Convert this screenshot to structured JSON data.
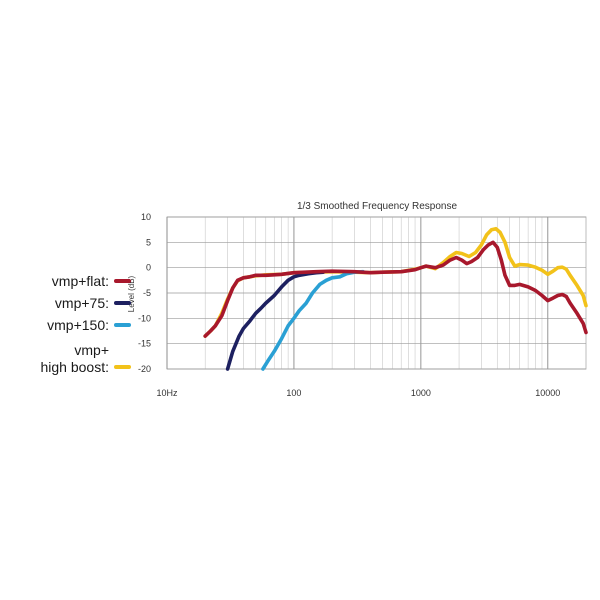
{
  "chart_data": {
    "type": "line",
    "title": "1/3 Smoothed Frequency Response",
    "xlabel": "",
    "ylabel": "Level (dB)",
    "xscale": "log",
    "xlim": [
      10,
      20000
    ],
    "ylim": [
      -20,
      10
    ],
    "grid": true,
    "legend_position": "left",
    "x_ticks": [
      10,
      100,
      1000,
      10000
    ],
    "x_tick_labels": [
      "10Hz",
      "100",
      "1000",
      "10000"
    ],
    "y_ticks": [
      10,
      5,
      0,
      -5,
      -10,
      -15,
      -20
    ],
    "y_tick_labels": [
      "10",
      "5",
      "0",
      "-5",
      "-10",
      "-15",
      "-20"
    ],
    "series": [
      {
        "name": "vmp+flat:",
        "color": "#a8182c",
        "points": [
          [
            20,
            -13.5
          ],
          [
            22,
            -12.5
          ],
          [
            24,
            -11.5
          ],
          [
            27,
            -9.5
          ],
          [
            30,
            -6.5
          ],
          [
            33,
            -4
          ],
          [
            36,
            -2.5
          ],
          [
            40,
            -2
          ],
          [
            45,
            -1.8
          ],
          [
            50,
            -1.5
          ],
          [
            60,
            -1.5
          ],
          [
            70,
            -1.4
          ],
          [
            80,
            -1.3
          ],
          [
            100,
            -1
          ],
          [
            150,
            -0.8
          ],
          [
            200,
            -0.7
          ],
          [
            300,
            -0.8
          ],
          [
            400,
            -1
          ],
          [
            500,
            -0.9
          ],
          [
            700,
            -0.8
          ],
          [
            900,
            -0.4
          ],
          [
            1000,
            0
          ],
          [
            1100,
            0.3
          ],
          [
            1300,
            0
          ],
          [
            1500,
            0.5
          ],
          [
            1700,
            1.5
          ],
          [
            1900,
            2
          ],
          [
            2100,
            1.5
          ],
          [
            2300,
            0.8
          ],
          [
            2500,
            1.2
          ],
          [
            2800,
            2
          ],
          [
            3100,
            3.5
          ],
          [
            3400,
            4.5
          ],
          [
            3700,
            5
          ],
          [
            4000,
            4
          ],
          [
            4300,
            1.5
          ],
          [
            4600,
            -1.5
          ],
          [
            5000,
            -3.5
          ],
          [
            5500,
            -3.5
          ],
          [
            6000,
            -3.3
          ],
          [
            7000,
            -3.8
          ],
          [
            8000,
            -4.5
          ],
          [
            9000,
            -5.5
          ],
          [
            10000,
            -6.5
          ],
          [
            11000,
            -6
          ],
          [
            12000,
            -5.5
          ],
          [
            13000,
            -5.3
          ],
          [
            14000,
            -5.7
          ],
          [
            15000,
            -7
          ],
          [
            17000,
            -9
          ],
          [
            19000,
            -11
          ],
          [
            20000,
            -12.8
          ]
        ]
      },
      {
        "name": "vmp+75:",
        "color": "#1d2060",
        "points": [
          [
            30,
            -20
          ],
          [
            33,
            -16.5
          ],
          [
            37,
            -13.5
          ],
          [
            40,
            -12
          ],
          [
            45,
            -10.5
          ],
          [
            50,
            -9
          ],
          [
            55,
            -8
          ],
          [
            60,
            -7
          ],
          [
            70,
            -5.5
          ],
          [
            80,
            -3.8
          ],
          [
            90,
            -2.5
          ],
          [
            100,
            -1.8
          ],
          [
            110,
            -1.5
          ],
          [
            130,
            -1.2
          ],
          [
            150,
            -1
          ],
          [
            170,
            -0.9
          ]
        ]
      },
      {
        "name": "vmp+150:",
        "color": "#2aa0d4",
        "points": [
          [
            57,
            -20
          ],
          [
            62,
            -18.5
          ],
          [
            70,
            -16.5
          ],
          [
            80,
            -14
          ],
          [
            90,
            -11.5
          ],
          [
            100,
            -10
          ],
          [
            110,
            -8.5
          ],
          [
            125,
            -7
          ],
          [
            140,
            -5
          ],
          [
            160,
            -3.3
          ],
          [
            180,
            -2.5
          ],
          [
            200,
            -2
          ],
          [
            230,
            -1.8
          ],
          [
            260,
            -1.2
          ],
          [
            300,
            -0.9
          ],
          [
            350,
            -0.8
          ]
        ]
      },
      {
        "name": "vmp+\nhigh boost:",
        "color": "#f2c21a",
        "points": [
          [
            20,
            -13.5
          ],
          [
            22,
            -12.5
          ],
          [
            24,
            -11.5
          ],
          [
            27,
            -9
          ],
          [
            30,
            -6.2
          ],
          [
            33,
            -4
          ],
          [
            36,
            -2.6
          ],
          [
            40,
            -2
          ],
          [
            45,
            -1.8
          ],
          [
            50,
            -1.6
          ],
          [
            60,
            -1.4
          ],
          [
            80,
            -1.3
          ],
          [
            100,
            -1
          ],
          [
            150,
            -0.9
          ],
          [
            200,
            -0.8
          ],
          [
            300,
            -0.9
          ],
          [
            400,
            -1
          ],
          [
            500,
            -0.9
          ],
          [
            700,
            -0.8
          ],
          [
            900,
            -0.3
          ],
          [
            1000,
            0
          ],
          [
            1100,
            0.3
          ],
          [
            1300,
            -0.2
          ],
          [
            1500,
            1
          ],
          [
            1700,
            2.2
          ],
          [
            1900,
            3
          ],
          [
            2100,
            2.8
          ],
          [
            2400,
            2.2
          ],
          [
            2700,
            3
          ],
          [
            3000,
            4.5
          ],
          [
            3300,
            6.5
          ],
          [
            3600,
            7.5
          ],
          [
            3900,
            7.7
          ],
          [
            4200,
            7
          ],
          [
            4600,
            5
          ],
          [
            5000,
            2
          ],
          [
            5500,
            0.3
          ],
          [
            6000,
            0.6
          ],
          [
            7000,
            0.5
          ],
          [
            8000,
            0.1
          ],
          [
            9000,
            -0.5
          ],
          [
            10000,
            -1.3
          ],
          [
            11000,
            -0.7
          ],
          [
            12000,
            0
          ],
          [
            13000,
            0.1
          ],
          [
            14000,
            -0.3
          ],
          [
            15000,
            -1.5
          ],
          [
            17000,
            -3.5
          ],
          [
            19000,
            -5.5
          ],
          [
            20000,
            -7.5
          ]
        ]
      }
    ]
  }
}
